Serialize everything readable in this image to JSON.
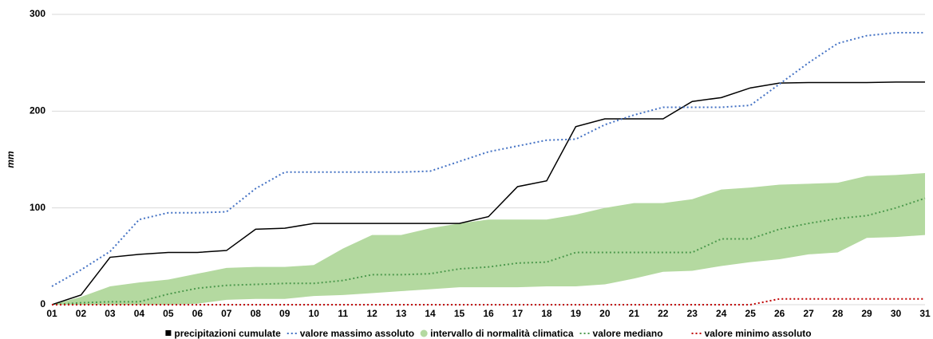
{
  "chart_data": {
    "type": "line",
    "y_label": "mm",
    "categories": [
      "01",
      "02",
      "03",
      "04",
      "05",
      "06",
      "07",
      "08",
      "09",
      "10",
      "11",
      "12",
      "13",
      "14",
      "15",
      "16",
      "17",
      "18",
      "19",
      "20",
      "21",
      "22",
      "23",
      "24",
      "25",
      "26",
      "27",
      "28",
      "29",
      "30",
      "31"
    ],
    "ylim": [
      0,
      300
    ],
    "yticks": [
      0,
      100,
      200,
      300
    ],
    "grid": true,
    "series": [
      {
        "name": "precipitazioni cumulate",
        "color": "#000000",
        "style": "solid",
        "values": [
          0,
          10,
          49,
          52,
          54,
          54,
          56,
          78,
          79,
          84,
          84,
          84,
          84,
          84,
          84,
          91,
          122,
          128,
          184,
          192,
          192,
          192,
          210,
          214,
          224,
          229,
          229.5,
          229.5,
          229.5,
          230,
          230
        ]
      },
      {
        "name": "valore massimo assoluto",
        "color": "#4472c4",
        "style": "dotted",
        "values": [
          19,
          36,
          55,
          88,
          95,
          95,
          96,
          120,
          137,
          137,
          137,
          137,
          137,
          138,
          148,
          158,
          164,
          170,
          171,
          186,
          196,
          204,
          204,
          204,
          206,
          228,
          250,
          270,
          278,
          281,
          281
        ]
      },
      {
        "name": "intervallo di normalità climatica",
        "color": "#b4d9a0",
        "style": "band",
        "upper": [
          0,
          8,
          19,
          23,
          26,
          32,
          38,
          39,
          39,
          41,
          58,
          72,
          72,
          79,
          84,
          88,
          88,
          88,
          93,
          100,
          105,
          105,
          109,
          119,
          121,
          124,
          125,
          126,
          133,
          134,
          136
        ],
        "lower": [
          0,
          0,
          0,
          0,
          0,
          1,
          5,
          6,
          6,
          9,
          10,
          12,
          14,
          16,
          18,
          18,
          18,
          19,
          19,
          21,
          27,
          34,
          35,
          40,
          44,
          47,
          52,
          54,
          69,
          70,
          72
        ]
      },
      {
        "name": "valore mediano",
        "color": "#4e9a4e",
        "style": "dotted",
        "values": [
          0,
          2,
          3,
          3,
          11,
          17,
          20,
          21,
          22,
          22,
          25,
          31,
          31,
          32,
          37,
          39,
          43,
          44,
          54,
          54,
          54,
          54,
          54,
          68,
          68,
          78,
          84,
          89,
          92,
          100,
          110
        ]
      },
      {
        "name": "valore minimo assoluto",
        "color": "#c00000",
        "style": "dotted",
        "values": [
          0,
          0,
          0,
          0,
          0,
          0,
          0,
          0,
          0,
          0,
          0,
          0,
          0,
          0,
          0,
          0,
          0,
          0,
          0,
          0,
          0,
          0,
          0,
          0,
          0,
          6,
          6,
          6,
          6,
          6,
          6
        ]
      }
    ]
  }
}
